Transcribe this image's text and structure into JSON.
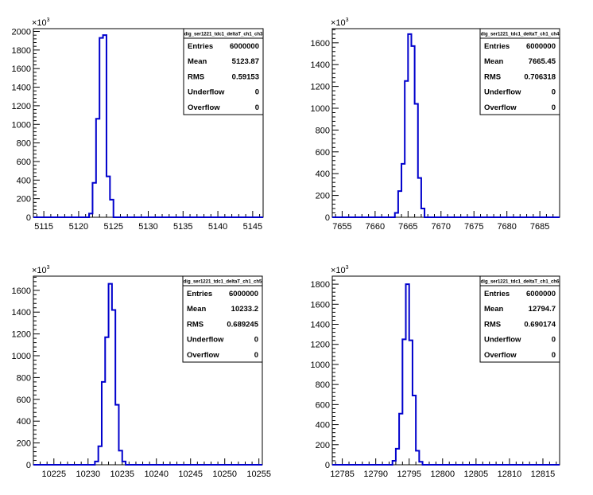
{
  "colors": {
    "histogram_line": "#0000cc",
    "axis": "#000000",
    "background": "#ffffff"
  },
  "y_multiplier": {
    "base": "×10",
    "exponent": "3"
  },
  "stats_labels": [
    "Entries",
    "Mean",
    "RMS",
    "Underflow",
    "Overflow"
  ],
  "chart_data": [
    {
      "type": "histogram",
      "stats": {
        "title": "dig_ser1221_tdc1_deltaT_ch1_ch3",
        "values": [
          "6000000",
          "5123.87",
          "0.59153",
          "0",
          "0"
        ]
      },
      "xlim": [
        5113.5,
        5146.5
      ],
      "ylim": [
        0,
        2030
      ],
      "x_ticks": [
        5115,
        5120,
        5125,
        5130,
        5135,
        5140,
        5145
      ],
      "y_ticks": [
        0,
        200,
        400,
        600,
        800,
        1000,
        1200,
        1400,
        1600,
        1800,
        2000
      ],
      "bin_width": 0.5,
      "bins": [
        [
          5121.5,
          40
        ],
        [
          5122,
          370
        ],
        [
          5122.5,
          1060
        ],
        [
          5123,
          1930
        ],
        [
          5123.5,
          1960
        ],
        [
          5124,
          440
        ],
        [
          5124.5,
          190
        ]
      ]
    },
    {
      "type": "histogram",
      "stats": {
        "title": "dig_ser1221_tdc1_deltaT_ch1_ch4",
        "values": [
          "6000000",
          "7665.45",
          "0.706318",
          "0",
          "0"
        ]
      },
      "xlim": [
        7653.5,
        7688
      ],
      "ylim": [
        0,
        1730
      ],
      "x_ticks": [
        7655,
        7660,
        7665,
        7670,
        7675,
        7680,
        7685
      ],
      "y_ticks": [
        0,
        200,
        400,
        600,
        800,
        1000,
        1200,
        1400,
        1600
      ],
      "bin_width": 0.5,
      "bins": [
        [
          7663,
          40
        ],
        [
          7663.5,
          240
        ],
        [
          7664,
          490
        ],
        [
          7664.5,
          1250
        ],
        [
          7665,
          1680
        ],
        [
          7665.5,
          1570
        ],
        [
          7666,
          1040
        ],
        [
          7666.5,
          360
        ],
        [
          7667,
          80
        ]
      ]
    },
    {
      "type": "histogram",
      "stats": {
        "title": "dig_ser1221_tdc1_deltaT_ch1_ch5",
        "values": [
          "6000000",
          "10233.2",
          "0.689245",
          "0",
          "0"
        ]
      },
      "xlim": [
        10222,
        10255.5
      ],
      "ylim": [
        0,
        1730
      ],
      "x_ticks": [
        10225,
        10230,
        10235,
        10240,
        10245,
        10250,
        10255
      ],
      "y_ticks": [
        0,
        200,
        400,
        600,
        800,
        1000,
        1200,
        1400,
        1600
      ],
      "bin_width": 0.5,
      "bins": [
        [
          10231,
          30
        ],
        [
          10231.5,
          170
        ],
        [
          10232,
          760
        ],
        [
          10232.5,
          1170
        ],
        [
          10233,
          1660
        ],
        [
          10233.5,
          1420
        ],
        [
          10234,
          550
        ],
        [
          10234.5,
          130
        ],
        [
          10235,
          30
        ]
      ]
    },
    {
      "type": "histogram",
      "stats": {
        "title": "dig_ser1221_tdc1_deltaT_ch1_ch6",
        "values": [
          "6000000",
          "12794.7",
          "0.690174",
          "0",
          "0"
        ]
      },
      "xlim": [
        12783.5,
        12817.5
      ],
      "ylim": [
        0,
        1880
      ],
      "x_ticks": [
        12785,
        12790,
        12795,
        12800,
        12805,
        12810,
        12815
      ],
      "y_ticks": [
        0,
        200,
        400,
        600,
        800,
        1000,
        1200,
        1400,
        1600,
        1800
      ],
      "bin_width": 0.5,
      "bins": [
        [
          12792.5,
          40
        ],
        [
          12793,
          160
        ],
        [
          12793.5,
          510
        ],
        [
          12794,
          1250
        ],
        [
          12794.5,
          1800
        ],
        [
          12795,
          1240
        ],
        [
          12795.5,
          690
        ],
        [
          12796,
          140
        ],
        [
          12796.5,
          30
        ]
      ]
    }
  ]
}
